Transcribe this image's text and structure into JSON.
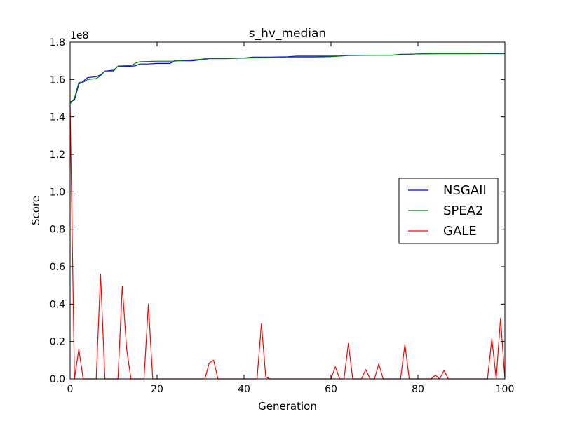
{
  "chart_data": {
    "type": "line",
    "title": "s_hv_median",
    "xlabel": "Generation",
    "ylabel": "Score",
    "y_multiplier_label": "1e8",
    "xlim": [
      0,
      100
    ],
    "ylim": [
      0,
      1.8
    ],
    "x_ticks": [
      0,
      20,
      40,
      60,
      80,
      100
    ],
    "x_tick_labels": [
      "0",
      "20",
      "40",
      "60",
      "80",
      "100"
    ],
    "y_ticks": [
      0.0,
      0.2,
      0.4,
      0.6,
      0.8,
      1.0,
      1.2,
      1.4,
      1.6,
      1.8
    ],
    "y_tick_labels": [
      "0.0",
      "0.2",
      "0.4",
      "0.6",
      "0.8",
      "1.0",
      "1.2",
      "1.4",
      "1.6",
      "1.8"
    ],
    "grid": false,
    "legend_position": "center-right",
    "series": [
      {
        "name": "NSGAII",
        "color": "#0000ff",
        "x": [
          0,
          1,
          2,
          3,
          4,
          6,
          7,
          8,
          10,
          11,
          13,
          15,
          16,
          18,
          20,
          23,
          24,
          26,
          28,
          30,
          32,
          34,
          36,
          40,
          42,
          44,
          46,
          50,
          52,
          54,
          56,
          60,
          62,
          64,
          66,
          70,
          74,
          76,
          78,
          80,
          84,
          88,
          92,
          96,
          100
        ],
        "y": [
          1.48,
          1.49,
          1.575,
          1.59,
          1.61,
          1.615,
          1.625,
          1.645,
          1.65,
          1.67,
          1.67,
          1.673,
          1.683,
          1.683,
          1.686,
          1.686,
          1.7,
          1.7,
          1.7,
          1.705,
          1.712,
          1.712,
          1.712,
          1.715,
          1.72,
          1.72,
          1.72,
          1.722,
          1.725,
          1.725,
          1.725,
          1.725,
          1.726,
          1.73,
          1.73,
          1.73,
          1.73,
          1.735,
          1.735,
          1.737,
          1.738,
          1.738,
          1.738,
          1.738,
          1.738
        ]
      },
      {
        "name": "SPEA2",
        "color": "#008000",
        "x": [
          0,
          1,
          2,
          3,
          4,
          6,
          7,
          8,
          10,
          11,
          14,
          15,
          16,
          20,
          24,
          26,
          28,
          30,
          32,
          36,
          40,
          42,
          46,
          50,
          54,
          56,
          60,
          64,
          70,
          74,
          76,
          80,
          84,
          90,
          100
        ],
        "y": [
          1.47,
          1.5,
          1.585,
          1.585,
          1.6,
          1.605,
          1.62,
          1.645,
          1.645,
          1.672,
          1.675,
          1.687,
          1.695,
          1.698,
          1.698,
          1.703,
          1.705,
          1.708,
          1.713,
          1.713,
          1.714,
          1.716,
          1.718,
          1.72,
          1.72,
          1.72,
          1.722,
          1.728,
          1.73,
          1.73,
          1.733,
          1.737,
          1.738,
          1.738,
          1.74
        ]
      },
      {
        "name": "GALE",
        "color": "#ff0000",
        "x": [
          0,
          1,
          2,
          3,
          4,
          5,
          6,
          7,
          8,
          9,
          10,
          11,
          12,
          13,
          14,
          15,
          16,
          17,
          18,
          19,
          20,
          25,
          30,
          31,
          32,
          33,
          34,
          40,
          43,
          44,
          45,
          46,
          50,
          55,
          60,
          61,
          62,
          63,
          64,
          65,
          66,
          67,
          68,
          69,
          70,
          71,
          72,
          73,
          74,
          75,
          76,
          77,
          78,
          79,
          80,
          83,
          84,
          85,
          86,
          87,
          88,
          90,
          95,
          96,
          97,
          98,
          99,
          100
        ],
        "y": [
          1.46,
          0.0,
          0.16,
          0.0,
          0.0,
          0.0,
          0.0,
          0.56,
          0.0,
          0.0,
          0.0,
          0.0,
          0.495,
          0.16,
          0.0,
          0.0,
          0.0,
          0.0,
          0.4,
          0.0,
          0.0,
          0.0,
          0.0,
          0.0,
          0.085,
          0.1,
          0.0,
          0.0,
          0.0,
          0.295,
          0.01,
          0.0,
          0.0,
          0.0,
          0.0,
          0.065,
          0.0,
          0.0,
          0.19,
          0.0,
          0.0,
          0.0,
          0.05,
          0.0,
          0.0,
          0.08,
          0.0,
          0.0,
          0.0,
          0.0,
          0.0,
          0.185,
          0.0,
          0.0,
          0.0,
          0.0,
          0.02,
          0.0,
          0.045,
          0.0,
          0.0,
          0.0,
          0.0,
          0.0,
          0.215,
          0.0,
          0.325,
          0.0
        ]
      }
    ]
  }
}
